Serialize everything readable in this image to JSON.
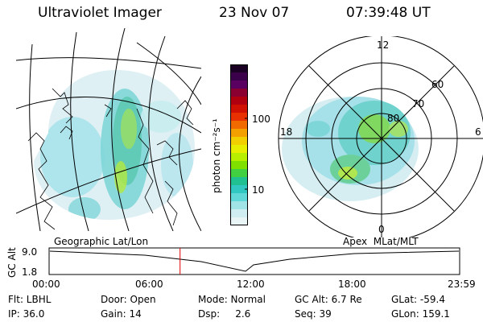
{
  "header": {
    "instrument": "Ultraviolet Imager",
    "date": "23 Nov 07",
    "time": "07:39:48 UT"
  },
  "geographic_panel": {
    "label": "Geographic Lat/Lon"
  },
  "colorbar": {
    "unit_label": "photon cm⁻²s⁻¹",
    "ticks": [
      "100",
      "10"
    ],
    "colors": [
      "#1a0022",
      "#3a004a",
      "#5a0060",
      "#8a0030",
      "#b00010",
      "#d01000",
      "#e83000",
      "#f06a00",
      "#f4a000",
      "#f2d000",
      "#e8ee00",
      "#b8ee00",
      "#80e000",
      "#40d040",
      "#20c090",
      "#30c8c0",
      "#60d8d8",
      "#a0e4e8",
      "#d0eef2",
      "#e8f4f6"
    ]
  },
  "polar_panel": {
    "label": "Apex  MLat/MLT",
    "mlt_labels": [
      "12",
      "18",
      "6",
      "0"
    ],
    "lat_labels": [
      "60",
      "70",
      "80"
    ]
  },
  "timeline": {
    "axis_title": "GC Alt",
    "y_ticks": [
      "9.0",
      "1.8"
    ],
    "x_ticks": [
      "00:00",
      "06:00",
      "12:00",
      "18:00",
      "23:59"
    ],
    "current_time_fraction": 0.319
  },
  "status": {
    "filter": "Flt: LBHL",
    "ip": "IP: 36.0",
    "door": "Door: Open",
    "gain": "Gain: 14",
    "mode": "Mode: Normal",
    "dsp": "Dsp:     2.6",
    "gc_alt": "GC Alt: 6.7 Re",
    "seq": "Seq: 39",
    "glat": "GLat: -59.4",
    "glon": "GLon: 159.1"
  }
}
